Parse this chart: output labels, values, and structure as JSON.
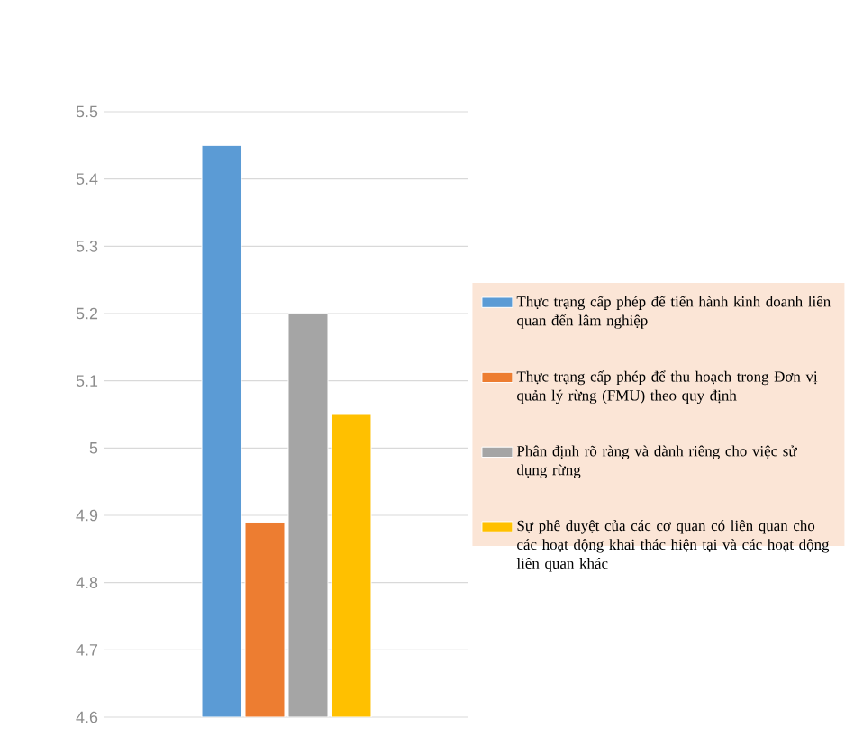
{
  "chart_data": {
    "type": "bar",
    "categories": [
      null
    ],
    "series": [
      {
        "name": "Thực trạng cấp phép để tiến hành kinh doanh liên quan đến lâm nghiệp",
        "color": "#5b9bd5",
        "values": [
          5.45
        ]
      },
      {
        "name": "Thực trạng cấp phép để thu hoạch trong Đơn vị quản lý rừng (FMU) theo quy định",
        "color": "#ed7d31",
        "values": [
          4.89
        ]
      },
      {
        "name": "Phân định rõ ràng và dành riêng cho việc sử dụng rừng",
        "color": "#a5a5a5",
        "values": [
          5.2
        ]
      },
      {
        "name": "Sự phê duyệt của các cơ quan có liên quan cho các hoạt động khai thác hiện tại và các hoạt động liên quan khác",
        "color": "#ffc000",
        "values": [
          5.05
        ]
      }
    ],
    "ylim": [
      4.6,
      5.5
    ],
    "yticks": [
      4.6,
      4.7,
      4.8,
      4.9,
      5,
      5.1,
      5.2,
      5.3,
      5.4,
      5.5
    ],
    "grid": "y",
    "legend": "right"
  }
}
